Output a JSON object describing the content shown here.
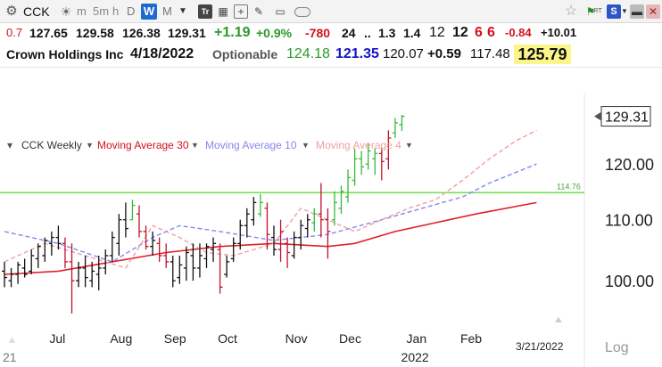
{
  "toolbar": {
    "symbol_value": "CCK",
    "period_m": "m",
    "period_5m": "5m",
    "period_60": "h",
    "period_d": "D",
    "period_w": "W",
    "period_mo": "M",
    "trade_label": "Tr",
    "rt_label": "RT",
    "sb_label": "S",
    "icons": [
      "gear-icon",
      "palette-icon",
      "calendar-icon",
      "add-icon",
      "pen-icon",
      "rectangle-icon",
      "toggle-icon",
      "star-icon",
      "flag-icon",
      "minimize-icon",
      "close-icon"
    ],
    "accent_color": "#1d6bd1"
  },
  "quote_row1": {
    "v1": "0.7",
    "open": "127.65",
    "high": "129.58",
    "low": "126.38",
    "close": "129.31",
    "change": "+1.19",
    "change_pct": "+0.9%",
    "v_neg780": "-780",
    "v24": "24",
    "dots": "..",
    "v13": "1.3",
    "v14": "1.4",
    "v12a": "12",
    "v12b": "12",
    "v6a": "6",
    "v6b": "6",
    "v_neg084": "-0.84",
    "v_pos1001": "+10.01"
  },
  "quote_row2": {
    "company": "Crown Holdings Inc",
    "date": "4/18/2022",
    "optionable": "Optionable",
    "v1": "124.18",
    "v2": "121.35",
    "v3": "120.07",
    "v4": "+0.59",
    "v5": "117.48",
    "v6": "125.79"
  },
  "indicators": {
    "symbol_weekly": "CCK Weekly",
    "ma30": "Moving Average 30",
    "ma10": "Moving Average 10",
    "ma4": "Moving Average 4"
  },
  "colors": {
    "up_bar": "#39b83a",
    "down_bar": "#c0132d",
    "neutral_bar": "#111111",
    "ma30": "#e0202a",
    "ma10": "#8a86ee",
    "ma4": "#f0a0a0",
    "hline": "#6fe04a",
    "price_box_border": "#333333"
  },
  "chart_data": {
    "type": "ohlc",
    "xlabel": "",
    "ylabel": "",
    "ylim": [
      92,
      134
    ],
    "y_ticks": [
      100,
      110,
      120
    ],
    "y_tick_labels": [
      "100.00",
      "110.00",
      "120.00"
    ],
    "x_tick_labels": [
      "Jul",
      "Aug",
      "Sep",
      "Oct",
      "Nov",
      "Dec",
      "Jan",
      "Feb"
    ],
    "x_tick_week_index": [
      8,
      17,
      25,
      33,
      43,
      51,
      61,
      69
    ],
    "year_label": "2022",
    "year_label_week_index": 61,
    "partial_label": "21",
    "date_label": "3/21/2022",
    "scale_label": "Log",
    "last_price_label": "129.31",
    "last_price": 129.31,
    "hline_value": 114.76,
    "hline_label": "114.76",
    "bars": [
      {
        "h": 103.0,
        "l": 99.0,
        "o": 101.5,
        "c": 100.5,
        "col": "n"
      },
      {
        "h": 102.0,
        "l": 99.0,
        "o": 100.0,
        "c": 101.0,
        "col": "n"
      },
      {
        "h": 103.0,
        "l": 99.5,
        "o": 101.0,
        "c": 102.5,
        "col": "n"
      },
      {
        "h": 103.5,
        "l": 100.5,
        "o": 102.0,
        "c": 101.0,
        "col": "n"
      },
      {
        "h": 105.0,
        "l": 101.0,
        "o": 101.5,
        "c": 104.0,
        "col": "n"
      },
      {
        "h": 106.0,
        "l": 102.0,
        "o": 103.5,
        "c": 105.5,
        "col": "n"
      },
      {
        "h": 107.0,
        "l": 103.0,
        "o": 104.0,
        "c": 106.5,
        "col": "n"
      },
      {
        "h": 108.0,
        "l": 104.0,
        "o": 106.0,
        "c": 107.0,
        "col": "n"
      },
      {
        "h": 109.0,
        "l": 105.0,
        "o": 107.0,
        "c": 106.0,
        "col": "n"
      },
      {
        "h": 107.0,
        "l": 102.0,
        "o": 106.0,
        "c": 103.0,
        "col": "d"
      },
      {
        "h": 106.0,
        "l": 95.0,
        "o": 103.0,
        "c": 100.0,
        "col": "d"
      },
      {
        "h": 103.0,
        "l": 99.0,
        "o": 100.0,
        "c": 102.0,
        "col": "n"
      },
      {
        "h": 104.0,
        "l": 99.0,
        "o": 102.0,
        "c": 100.5,
        "col": "n"
      },
      {
        "h": 103.0,
        "l": 99.0,
        "o": 100.0,
        "c": 101.5,
        "col": "n"
      },
      {
        "h": 104.0,
        "l": 98.5,
        "o": 101.0,
        "c": 102.0,
        "col": "n"
      },
      {
        "h": 105.0,
        "l": 101.0,
        "o": 102.0,
        "c": 104.0,
        "col": "n"
      },
      {
        "h": 108.0,
        "l": 103.0,
        "o": 104.0,
        "c": 107.0,
        "col": "n"
      },
      {
        "h": 111.0,
        "l": 104.0,
        "o": 106.0,
        "c": 110.0,
        "col": "n"
      },
      {
        "h": 113.0,
        "l": 107.0,
        "o": 110.0,
        "c": 108.5,
        "col": "n"
      },
      {
        "h": 113.5,
        "l": 110.0,
        "o": 110.0,
        "c": 112.5,
        "col": "u"
      },
      {
        "h": 112.5,
        "l": 107.0,
        "o": 111.0,
        "c": 108.0,
        "col": "d"
      },
      {
        "h": 109.0,
        "l": 105.0,
        "o": 108.0,
        "c": 105.5,
        "col": "d"
      },
      {
        "h": 108.0,
        "l": 104.0,
        "o": 105.5,
        "c": 106.5,
        "col": "n"
      },
      {
        "h": 107.0,
        "l": 103.0,
        "o": 106.0,
        "c": 104.0,
        "col": "d"
      },
      {
        "h": 106.0,
        "l": 102.0,
        "o": 104.0,
        "c": 103.0,
        "col": "d"
      },
      {
        "h": 104.0,
        "l": 99.0,
        "o": 103.0,
        "c": 100.0,
        "col": "n"
      },
      {
        "h": 104.0,
        "l": 99.5,
        "o": 100.5,
        "c": 102.5,
        "col": "n"
      },
      {
        "h": 105.5,
        "l": 100.0,
        "o": 102.0,
        "c": 104.5,
        "col": "n"
      },
      {
        "h": 106.0,
        "l": 100.0,
        "o": 104.0,
        "c": 102.0,
        "col": "n"
      },
      {
        "h": 106.0,
        "l": 100.5,
        "o": 102.0,
        "c": 104.0,
        "col": "n"
      },
      {
        "h": 106.0,
        "l": 102.0,
        "o": 103.5,
        "c": 105.5,
        "col": "n"
      },
      {
        "h": 107.0,
        "l": 103.0,
        "o": 105.0,
        "c": 106.0,
        "col": "n"
      },
      {
        "h": 106.0,
        "l": 98.0,
        "o": 105.0,
        "c": 99.0,
        "col": "d"
      },
      {
        "h": 104.0,
        "l": 100.5,
        "o": 101.0,
        "c": 103.0,
        "col": "n"
      },
      {
        "h": 107.0,
        "l": 103.0,
        "o": 103.5,
        "c": 106.0,
        "col": "n"
      },
      {
        "h": 110.0,
        "l": 105.0,
        "o": 106.0,
        "c": 109.0,
        "col": "n"
      },
      {
        "h": 112.0,
        "l": 107.0,
        "o": 109.0,
        "c": 111.0,
        "col": "n"
      },
      {
        "h": 114.0,
        "l": 109.0,
        "o": 110.0,
        "c": 113.0,
        "col": "n"
      },
      {
        "h": 114.5,
        "l": 110.5,
        "o": 111.0,
        "c": 113.0,
        "col": "u"
      },
      {
        "h": 113.0,
        "l": 105.0,
        "o": 112.0,
        "c": 107.5,
        "col": "d"
      },
      {
        "h": 109.0,
        "l": 104.0,
        "o": 107.0,
        "c": 105.0,
        "col": "n"
      },
      {
        "h": 110.0,
        "l": 103.0,
        "o": 105.0,
        "c": 108.0,
        "col": "d"
      },
      {
        "h": 107.0,
        "l": 102.0,
        "o": 106.0,
        "c": 104.5,
        "col": "d"
      },
      {
        "h": 108.0,
        "l": 103.5,
        "o": 104.0,
        "c": 107.0,
        "col": "n"
      },
      {
        "h": 110.0,
        "l": 105.0,
        "o": 107.0,
        "c": 109.0,
        "col": "n"
      },
      {
        "h": 111.0,
        "l": 107.0,
        "o": 108.5,
        "c": 110.0,
        "col": "n"
      },
      {
        "h": 112.0,
        "l": 108.0,
        "o": 109.5,
        "c": 111.0,
        "col": "u"
      },
      {
        "h": 116.5,
        "l": 107.0,
        "o": 111.0,
        "c": 110.0,
        "col": "d"
      },
      {
        "h": 112.0,
        "l": 103.5,
        "o": 110.0,
        "c": 108.0,
        "col": "d"
      },
      {
        "h": 115.0,
        "l": 109.0,
        "o": 110.0,
        "c": 113.0,
        "col": "u"
      },
      {
        "h": 116.0,
        "l": 111.0,
        "o": 112.0,
        "c": 115.0,
        "col": "u"
      },
      {
        "h": 119.0,
        "l": 113.0,
        "o": 114.0,
        "c": 117.5,
        "col": "u"
      },
      {
        "h": 123.0,
        "l": 116.0,
        "o": 117.0,
        "c": 121.0,
        "col": "u"
      },
      {
        "h": 122.5,
        "l": 118.0,
        "o": 121.0,
        "c": 119.5,
        "col": "u"
      },
      {
        "h": 124.0,
        "l": 119.0,
        "o": 120.0,
        "c": 122.5,
        "col": "u"
      },
      {
        "h": 123.0,
        "l": 118.0,
        "o": 121.0,
        "c": 122.0,
        "col": "u"
      },
      {
        "h": 123.0,
        "l": 117.0,
        "o": 122.0,
        "c": 120.5,
        "col": "d"
      },
      {
        "h": 126.5,
        "l": 119.0,
        "o": 121.0,
        "c": 125.0,
        "col": "d"
      },
      {
        "h": 129.0,
        "l": 125.0,
        "o": 126.0,
        "c": 128.0,
        "col": "u"
      },
      {
        "h": 129.6,
        "l": 126.4,
        "o": 127.65,
        "c": 129.31,
        "col": "u"
      }
    ],
    "ma30_points": [
      [
        0,
        101.0
      ],
      [
        8,
        101.5
      ],
      [
        16,
        103.0
      ],
      [
        24,
        104.5
      ],
      [
        32,
        105.5
      ],
      [
        40,
        106.0
      ],
      [
        48,
        105.5
      ],
      [
        52,
        106.0
      ],
      [
        58,
        108.0
      ],
      [
        64,
        109.5
      ],
      [
        70,
        111.0
      ],
      [
        79,
        113.0
      ]
    ],
    "ma10_points": [
      [
        0,
        108.0
      ],
      [
        8,
        106.0
      ],
      [
        16,
        103.0
      ],
      [
        22,
        107.0
      ],
      [
        26,
        109.0
      ],
      [
        32,
        108.0
      ],
      [
        40,
        106.5
      ],
      [
        48,
        107.5
      ],
      [
        56,
        110.0
      ],
      [
        62,
        112.0
      ],
      [
        68,
        114.0
      ],
      [
        72,
        116.5
      ],
      [
        79,
        120.0
      ]
    ],
    "ma4_points": [
      [
        0,
        103.0
      ],
      [
        6,
        106.0
      ],
      [
        12,
        104.0
      ],
      [
        18,
        102.0
      ],
      [
        22,
        109.0
      ],
      [
        26,
        107.0
      ],
      [
        30,
        104.5
      ],
      [
        34,
        104.0
      ],
      [
        40,
        106.0
      ],
      [
        44,
        112.0
      ],
      [
        48,
        110.0
      ],
      [
        52,
        108.0
      ],
      [
        56,
        110.0
      ],
      [
        60,
        112.0
      ],
      [
        64,
        113.5
      ],
      [
        68,
        117.0
      ],
      [
        72,
        121.0
      ],
      [
        76,
        124.5
      ],
      [
        79,
        126.5
      ]
    ]
  }
}
